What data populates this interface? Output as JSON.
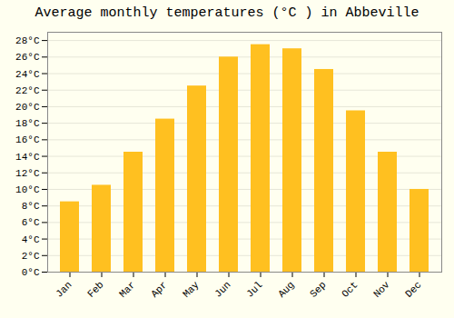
{
  "chart_data": {
    "type": "bar",
    "title": "Average monthly temperatures (°C ) in Abbeville",
    "categories": [
      "Jan",
      "Feb",
      "Mar",
      "Apr",
      "May",
      "Jun",
      "Jul",
      "Aug",
      "Sep",
      "Oct",
      "Nov",
      "Dec"
    ],
    "values": [
      8.5,
      10.5,
      14.5,
      18.5,
      22.5,
      26.0,
      27.5,
      27.0,
      24.5,
      19.5,
      14.5,
      10.0
    ],
    "color": "#FFC020",
    "ylim": [
      0,
      29
    ],
    "yticks": [
      {
        "value": 0,
        "label": "0°C"
      },
      {
        "value": 2,
        "label": "2°C"
      },
      {
        "value": 4,
        "label": "4°C"
      },
      {
        "value": 6,
        "label": "6°C"
      },
      {
        "value": 8,
        "label": "8°C"
      },
      {
        "value": 10,
        "label": "10°C"
      },
      {
        "value": 12,
        "label": "12°C"
      },
      {
        "value": 14,
        "label": "14°C"
      },
      {
        "value": 16,
        "label": "16°C"
      },
      {
        "value": 18,
        "label": "18°C"
      },
      {
        "value": 20,
        "label": "20°C"
      },
      {
        "value": 22,
        "label": "22°C"
      },
      {
        "value": 24,
        "label": "24°C"
      },
      {
        "value": 26,
        "label": "26°C"
      },
      {
        "value": 28,
        "label": "28°C"
      }
    ],
    "grid": true
  }
}
